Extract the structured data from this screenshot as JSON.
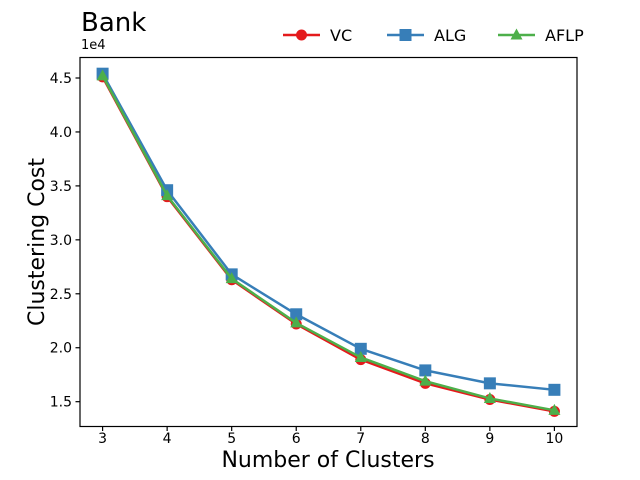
{
  "chart_data": {
    "type": "line",
    "title": "Bank",
    "xlabel": "Number of Clusters",
    "ylabel": "Clustering Cost",
    "y_offset_label": "1e4",
    "x": [
      3,
      4,
      5,
      6,
      7,
      8,
      9,
      10
    ],
    "series": [
      {
        "name": "VC",
        "color": "#e41a1c",
        "marker": "circle",
        "values": [
          45100,
          34000,
          26300,
          22200,
          18900,
          16700,
          15200,
          14100
        ]
      },
      {
        "name": "ALG",
        "color": "#377eb8",
        "marker": "square",
        "values": [
          45400,
          34600,
          26800,
          23100,
          19900,
          17900,
          16700,
          16100
        ]
      },
      {
        "name": "AFLP",
        "color": "#4daf4a",
        "marker": "triangle",
        "values": [
          45200,
          34100,
          26400,
          22300,
          19100,
          16900,
          15300,
          14200
        ]
      }
    ],
    "xticks": [
      3,
      4,
      5,
      6,
      7,
      8,
      9,
      10
    ],
    "xtick_labels": [
      "3",
      "4",
      "5",
      "6",
      "7",
      "8",
      "9",
      "10"
    ],
    "yticks": [
      15000,
      20000,
      25000,
      30000,
      35000,
      40000,
      45000
    ],
    "ytick_labels": [
      "1.5",
      "2.0",
      "2.5",
      "3.0",
      "3.5",
      "4.0",
      "4.5"
    ],
    "xlim": [
      2.65,
      10.35
    ],
    "ylim": [
      12700,
      46900
    ],
    "grid": false,
    "legend": {
      "position": "upper-right-horizontal",
      "entries": [
        "VC",
        "ALG",
        "AFLP"
      ]
    },
    "axis_color": "#000000",
    "background_color": "#ffffff"
  }
}
